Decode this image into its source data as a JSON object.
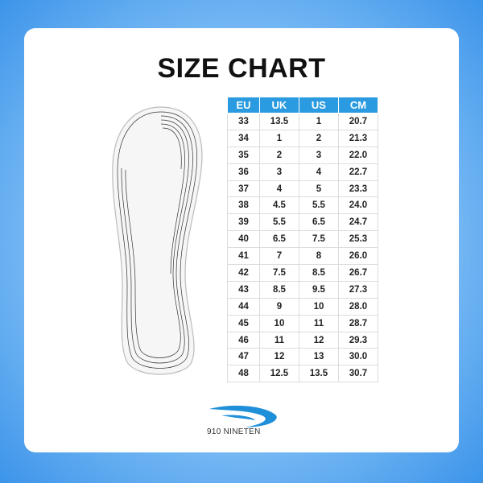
{
  "title": "SIZE CHART",
  "table": {
    "headers": [
      "EU",
      "UK",
      "US",
      "CM"
    ],
    "rows": [
      [
        "33",
        "13.5",
        "1",
        "20.7"
      ],
      [
        "34",
        "1",
        "2",
        "21.3"
      ],
      [
        "35",
        "2",
        "3",
        "22.0"
      ],
      [
        "36",
        "3",
        "4",
        "22.7"
      ],
      [
        "37",
        "4",
        "5",
        "23.3"
      ],
      [
        "38",
        "4.5",
        "5.5",
        "24.0"
      ],
      [
        "39",
        "5.5",
        "6.5",
        "24.7"
      ],
      [
        "40",
        "6.5",
        "7.5",
        "25.3"
      ],
      [
        "41",
        "7",
        "8",
        "26.0"
      ],
      [
        "42",
        "7.5",
        "8.5",
        "26.7"
      ],
      [
        "43",
        "8.5",
        "9.5",
        "27.3"
      ],
      [
        "44",
        "9",
        "10",
        "28.0"
      ],
      [
        "45",
        "10",
        "11",
        "28.7"
      ],
      [
        "46",
        "11",
        "12",
        "29.3"
      ],
      [
        "47",
        "12",
        "13",
        "30.0"
      ],
      [
        "48",
        "12.5",
        "13.5",
        "30.7"
      ]
    ]
  },
  "brand": {
    "name": "910 NINETEN"
  },
  "colors": {
    "header": "#2a9be0",
    "logo": "#1e8fd8"
  },
  "icons": {
    "insole": "insole-illustration"
  }
}
